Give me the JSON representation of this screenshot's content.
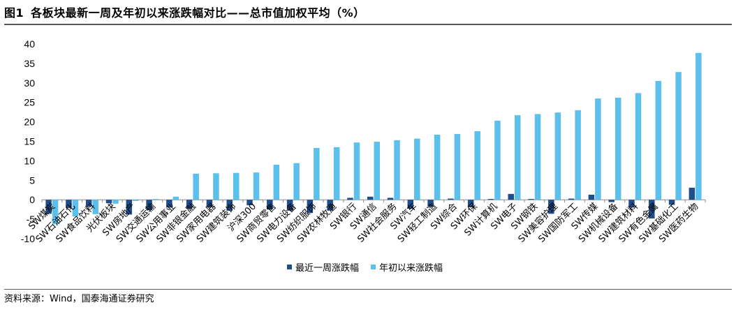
{
  "header": {
    "figure_label": "图1",
    "title": "各板块最新一周及年初以来涨跌幅对比——总市值加权平均（%）"
  },
  "footer": {
    "source": "资料来源：Wind，国泰海通证券研究"
  },
  "chart_data": {
    "type": "bar",
    "title": "各板块最新一周及年初以来涨跌幅对比——总市值加权平均（%）",
    "xlabel": "",
    "ylabel": "",
    "ylim": [
      -10,
      40
    ],
    "yticks": [
      -10,
      -5,
      0,
      5,
      10,
      15,
      20,
      25,
      30,
      35,
      40
    ],
    "grid": false,
    "legend": "bottom-center",
    "categories": [
      "SW煤炭",
      "SW石油石化",
      "SW食品饮料",
      "光伏板块",
      "SW房地产",
      "SW交通运输",
      "SW公用事业",
      "SW非银金融",
      "SW家用电器",
      "SW建筑装饰",
      "沪深300",
      "SW商贸零售",
      "SW电力设备",
      "SW纺织服饰",
      "SW农林牧渔",
      "SW银行",
      "SW通信",
      "SW社会服务",
      "SW汽车",
      "SW轻工制造",
      "SW综合",
      "SW环保",
      "SW计算机",
      "SW电子",
      "SW钢铁",
      "SW美容护理",
      "SW国防军工",
      "SW传媒",
      "SW机械设备",
      "SW建筑材料",
      "SW有色金属",
      "SW基础化工",
      "SW医药生物"
    ],
    "series": [
      {
        "name": "最近一周涨跌幅",
        "color": "#1f4e8c",
        "values": [
          -3.6,
          -2.1,
          -1.8,
          -0.9,
          -3.8,
          -2.7,
          -2.0,
          -2.3,
          -1.9,
          -2.8,
          -1.4,
          -2.5,
          -2.8,
          -3.4,
          -2.8,
          0.5,
          0.8,
          0.5,
          -2.3,
          -1.8,
          0.3,
          -1.9,
          0.2,
          1.5,
          0.2,
          -3.6,
          0.3,
          1.3,
          -0.6,
          -2.0,
          -4.8,
          -1.3,
          3.1
        ]
      },
      {
        "name": "年初以来涨跌幅",
        "color": "#5bc0eb",
        "values": [
          -6.3,
          -4.3,
          -3.7,
          -1.0,
          -0.3,
          0.2,
          0.8,
          6.7,
          6.8,
          6.9,
          7.0,
          9.0,
          9.4,
          13.3,
          13.5,
          14.7,
          14.9,
          15.3,
          15.7,
          16.7,
          16.9,
          17.6,
          20.3,
          21.7,
          22.0,
          22.4,
          23.0,
          26.0,
          26.2,
          27.4,
          30.5,
          32.8,
          37.7
        ]
      }
    ]
  }
}
